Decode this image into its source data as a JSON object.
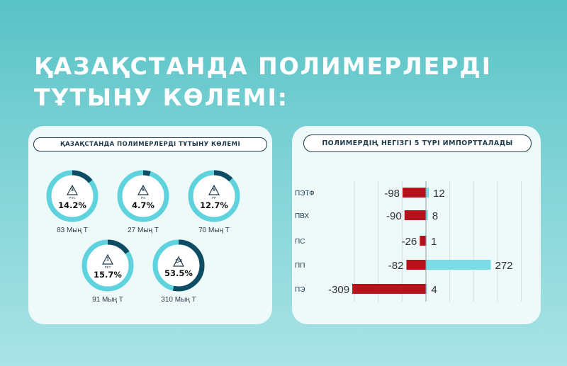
{
  "page": {
    "title_line1": "ҚАЗАҚСТАНДА ПОЛИМЕРЛЕРДІ",
    "title_line2": "ТҰТЫНУ КӨЛЕМІ:"
  },
  "colors": {
    "accent": "#5fd3dd",
    "dark": "#0e4c63",
    "negative": "#b5121b",
    "positive": "#79dce6"
  },
  "left_panel": {
    "pill": "ҚАЗАҚСТАНДА ПОЛИМЕРЛЕРДІ ТҰТЫНУ КӨЛЕМІ",
    "items": [
      {
        "symbol_num": "3",
        "code": "PVC",
        "percent_label": "14.2%",
        "percent": 14.2,
        "volume": "83 Мың Т"
      },
      {
        "symbol_num": "6",
        "code": "PS",
        "percent_label": "4.7%",
        "percent": 4.7,
        "volume": "27 Мың Т"
      },
      {
        "symbol_num": "5",
        "code": "PP",
        "percent_label": "12.7%",
        "percent": 12.7,
        "volume": "70 Мың Т"
      },
      {
        "symbol_num": "1",
        "code": "PET",
        "percent_label": "15.7%",
        "percent": 15.7,
        "volume": "91 Мың Т"
      },
      {
        "symbol_num": "2/4",
        "code": "",
        "percent_label": "53.5%",
        "percent": 53.5,
        "volume": "310 Мың Т"
      }
    ]
  },
  "right_panel": {
    "pill": "ПОЛИМЕРДІҢ НЕГІЗГІ 5 ТҮРІ ИМПОРТТАЛАДЫ"
  },
  "chart_data": [
    {
      "type": "bar",
      "orientation": "horizontal",
      "title": "ПОЛИМЕРДІҢ НЕГІЗГІ 5 ТҮРІ ИМПОРТТАЛАДЫ",
      "categories": [
        "ПЭТФ",
        "ПВХ",
        "ПС",
        "ПП",
        "ПЭ"
      ],
      "series": [
        {
          "values": [
            -98,
            -90,
            -26,
            -82,
            -309
          ],
          "color": "#b5121b"
        },
        {
          "values": [
            12,
            8,
            1,
            272,
            4
          ],
          "color": "#79dce6"
        }
      ],
      "xlim": [
        -320,
        400
      ],
      "grid": true
    }
  ]
}
